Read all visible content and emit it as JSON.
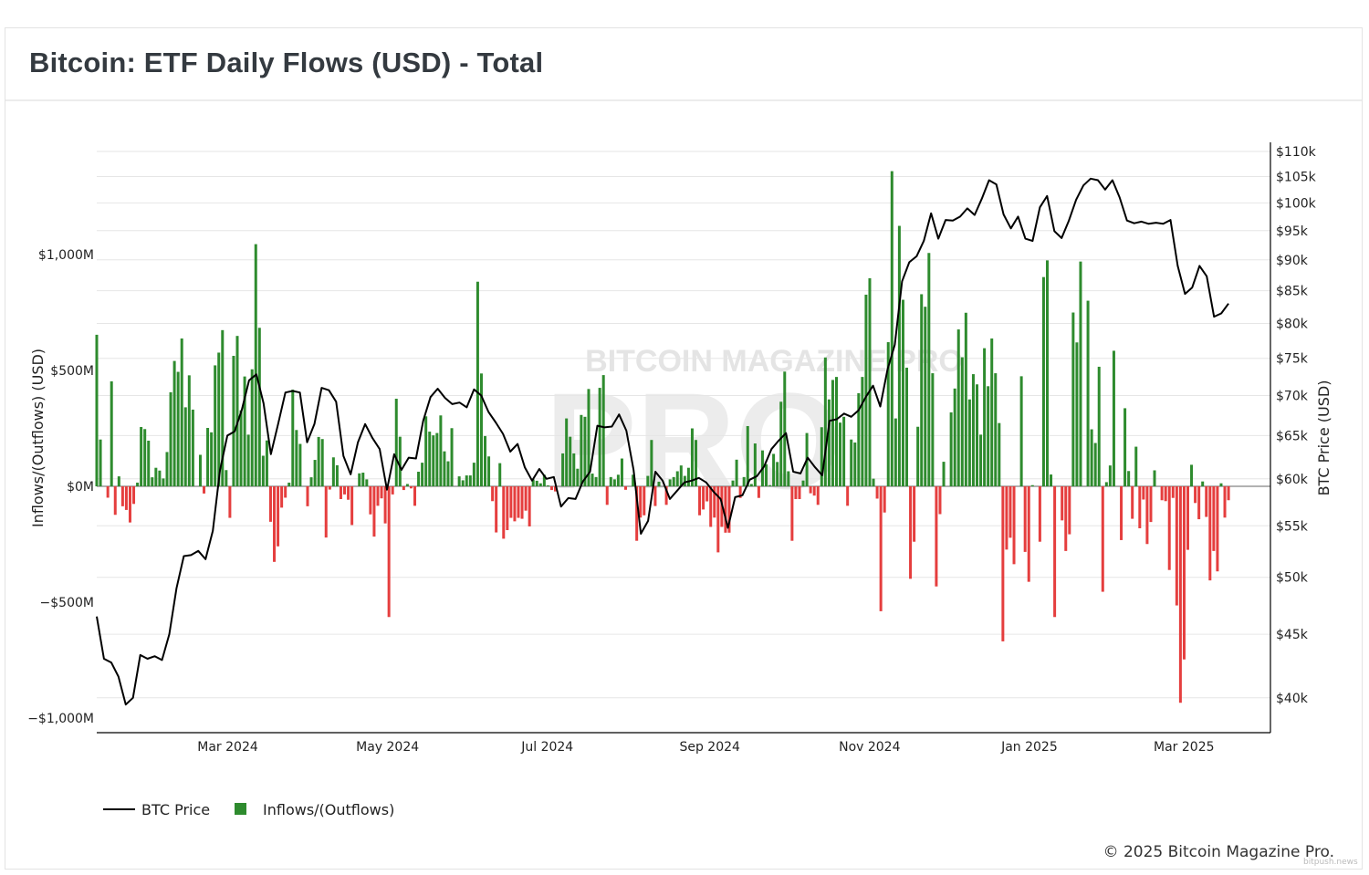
{
  "title": "Bitcoin: ETF Daily Flows (USD) - Total",
  "copyright": "© 2025 Bitcoin Magazine Pro.",
  "watermark": {
    "logo_text": "BITCOIN MAGAZINE PRO",
    "big_text": "PRO",
    "bitpush": "bitpush.news"
  },
  "colors": {
    "inflow": "#2e8b2e",
    "outflow": "#e53e3e",
    "price": "#000000",
    "grid": "#e6e6e6",
    "title": "#343a40"
  },
  "chart_data": {
    "type": "bar+line",
    "title": "Bitcoin: ETF Daily Flows (USD) - Total",
    "xlabel": "",
    "ylabel_left": "Inflows/(Outflows) (USD)",
    "ylabel_right": "BTC Price (USD)",
    "xlim": [
      "2024-01-11",
      "2025-04-03"
    ],
    "ylim_left_musd": [
      -1063,
      1445
    ],
    "ylim_right_usd": [
      37500,
      110000
    ],
    "right_axis_scale": "log",
    "grid": true,
    "legend_placement": "bottom-left",
    "x_ticks": [
      {
        "date": "2024-03-01",
        "label": "Mar 2024"
      },
      {
        "date": "2024-05-01",
        "label": "May 2024"
      },
      {
        "date": "2024-07-01",
        "label": "Jul 2024"
      },
      {
        "date": "2024-09-01",
        "label": "Sep 2024"
      },
      {
        "date": "2024-11-01",
        "label": "Nov 2024"
      },
      {
        "date": "2025-01-01",
        "label": "Jan 2025"
      },
      {
        "date": "2025-03-01",
        "label": "Mar 2025"
      }
    ],
    "y_left_ticks": [
      {
        "value": 1000,
        "label": "$1,000M"
      },
      {
        "value": 500,
        "label": "$500M"
      },
      {
        "value": 0,
        "label": "$0M"
      },
      {
        "value": -500,
        "label": "−$500M"
      },
      {
        "value": -1000,
        "label": "−$1,000M"
      }
    ],
    "y_right_ticks": [
      {
        "value": 110000,
        "label": "$110k"
      },
      {
        "value": 105000,
        "label": "$105k"
      },
      {
        "value": 100000,
        "label": "$100k"
      },
      {
        "value": 95000,
        "label": "$95k"
      },
      {
        "value": 90000,
        "label": "$90k"
      },
      {
        "value": 85000,
        "label": "$85k"
      },
      {
        "value": 80000,
        "label": "$80k"
      },
      {
        "value": 75000,
        "label": "$75k"
      },
      {
        "value": 70000,
        "label": "$70k"
      },
      {
        "value": 65000,
        "label": "$65k"
      },
      {
        "value": 60000,
        "label": "$60k"
      },
      {
        "value": 55000,
        "label": "$55k"
      },
      {
        "value": 50000,
        "label": "$50k"
      },
      {
        "value": 45000,
        "label": "$45k"
      },
      {
        "value": 40000,
        "label": "$40k"
      }
    ],
    "legend": [
      {
        "name": "BTC Price",
        "type": "line"
      },
      {
        "name": "Inflows/(Outflows)",
        "type": "bar"
      }
    ],
    "flows": {
      "name": "Inflows/(Outflows)",
      "unit": "million USD",
      "first_date": "2024-01-11",
      "last_date": "2025-03-18",
      "values": [
        654,
        202,
        0,
        -49,
        453,
        -123,
        43,
        -86,
        -102,
        -156,
        -76,
        16,
        256,
        247,
        197,
        39,
        80,
        68,
        34,
        148,
        406,
        541,
        494,
        638,
        341,
        479,
        331,
        0,
        136,
        -31,
        252,
        233,
        522,
        577,
        674,
        70,
        -136,
        563,
        649,
        328,
        474,
        223,
        505,
        1045,
        684,
        132,
        198,
        -153,
        -326,
        -259,
        -92,
        -49,
        16,
        417,
        243,
        183,
        0,
        -86,
        39,
        114,
        213,
        204,
        -221,
        -14,
        125,
        91,
        -55,
        -35,
        -58,
        -167,
        0,
        56,
        59,
        30,
        -121,
        -217,
        -84,
        -52,
        -160,
        -564,
        -35,
        378,
        214,
        -16,
        10,
        -9,
        -84,
        63,
        102,
        302,
        236,
        220,
        230,
        306,
        151,
        108,
        251,
        0,
        43,
        26,
        47,
        47,
        102,
        883,
        487,
        217,
        129,
        -64,
        -199,
        100,
        -226,
        -189,
        -136,
        -151,
        -136,
        -140,
        -105,
        -173,
        30,
        24,
        13,
        50,
        4,
        -16,
        -22,
        0,
        142,
        293,
        214,
        142,
        76,
        308,
        300,
        420,
        55,
        40,
        425,
        480,
        -80,
        40,
        30,
        50,
        120,
        -15,
        0,
        50,
        -235,
        -135,
        -125,
        45,
        200,
        -85,
        20,
        0,
        -80,
        30,
        40,
        65,
        90,
        45,
        80,
        250,
        200,
        -125,
        -100,
        -65,
        -175,
        -135,
        -285,
        -175,
        -200,
        -200,
        25,
        115,
        -50,
        40,
        260,
        10,
        185,
        -50,
        155,
        95,
        5,
        140,
        105,
        365,
        495,
        65,
        -235,
        -55,
        -55,
        25,
        230,
        -30,
        -40,
        -80,
        255,
        556,
        375,
        459,
        472,
        275,
        300,
        -84,
        202,
        189,
        402,
        472,
        827,
        898,
        33,
        -53,
        -539,
        -113,
        622,
        1360,
        293,
        1124,
        805,
        512,
        -399,
        -239,
        257,
        829,
        775,
        1007,
        488,
        -432,
        -120,
        106,
        0,
        319,
        422,
        677,
        557,
        749,
        375,
        484,
        440,
        223,
        596,
        432,
        638,
        488,
        273,
        -669,
        -273,
        -222,
        -336,
        0,
        475,
        -283,
        -412,
        5,
        0,
        -239,
        903,
        975,
        51,
        -564,
        0,
        -147,
        -279,
        -207,
        750,
        621,
        970,
        0,
        801,
        246,
        187,
        516,
        -455,
        18,
        90,
        585,
        0,
        -232,
        337,
        66,
        -140,
        171,
        -181,
        -57,
        -249,
        -154,
        69,
        0,
        -60,
        -64,
        -361,
        -50,
        -514,
        -934,
        -747,
        -274,
        93,
        -72,
        -142,
        21,
        -132,
        -406,
        -279,
        -367,
        13,
        -135,
        -60
      ]
    },
    "price": {
      "name": "BTC Price",
      "unit": "USD",
      "first_date": "2024-01-11",
      "last_date": "2025-03-18",
      "values": [
        46500,
        43000,
        42700,
        41600,
        39500,
        40000,
        43300,
        43000,
        43200,
        42900,
        45000,
        49000,
        52000,
        52100,
        52500,
        51700,
        54500,
        61000,
        65000,
        65500,
        68200,
        72000,
        72800,
        69000,
        62800,
        66400,
        70400,
        70600,
        70400,
        64200,
        66400,
        71000,
        70700,
        69200,
        62600,
        60500,
        64200,
        66400,
        64700,
        63400,
        58800,
        62800,
        61000,
        62400,
        62300,
        66800,
        69800,
        70900,
        69700,
        68900,
        69100,
        68500,
        70800,
        70000,
        67900,
        66600,
        65200,
        63100,
        64000,
        61300,
        59800,
        61100,
        60000,
        60200,
        57000,
        57900,
        57800,
        59700,
        60800,
        66200,
        66000,
        66100,
        67600,
        65600,
        61000,
        54200,
        55500,
        60800,
        59800,
        57800,
        58700,
        59600,
        59800,
        60100,
        59600,
        58600,
        57800,
        54800,
        58000,
        58200,
        59900,
        60300,
        61400,
        63400,
        64400,
        65300,
        60800,
        60600,
        62400,
        61300,
        60400,
        66800,
        67000,
        67700,
        67300,
        68100,
        69800,
        71300,
        68600,
        73500,
        76900,
        86500,
        89600,
        90600,
        93200,
        98100,
        93600,
        96900,
        96800,
        97500,
        99000,
        97800,
        100800,
        104300,
        103500,
        97900,
        95400,
        97500,
        93600,
        93200,
        99200,
        101300,
        94900,
        93700,
        96800,
        100600,
        103300,
        104600,
        104300,
        102500,
        104300,
        101000,
        96800,
        96300,
        96600,
        96200,
        96400,
        96200,
        96900,
        89000,
        84500,
        85500,
        89000,
        87300,
        81000,
        81500,
        83000
      ]
    }
  }
}
